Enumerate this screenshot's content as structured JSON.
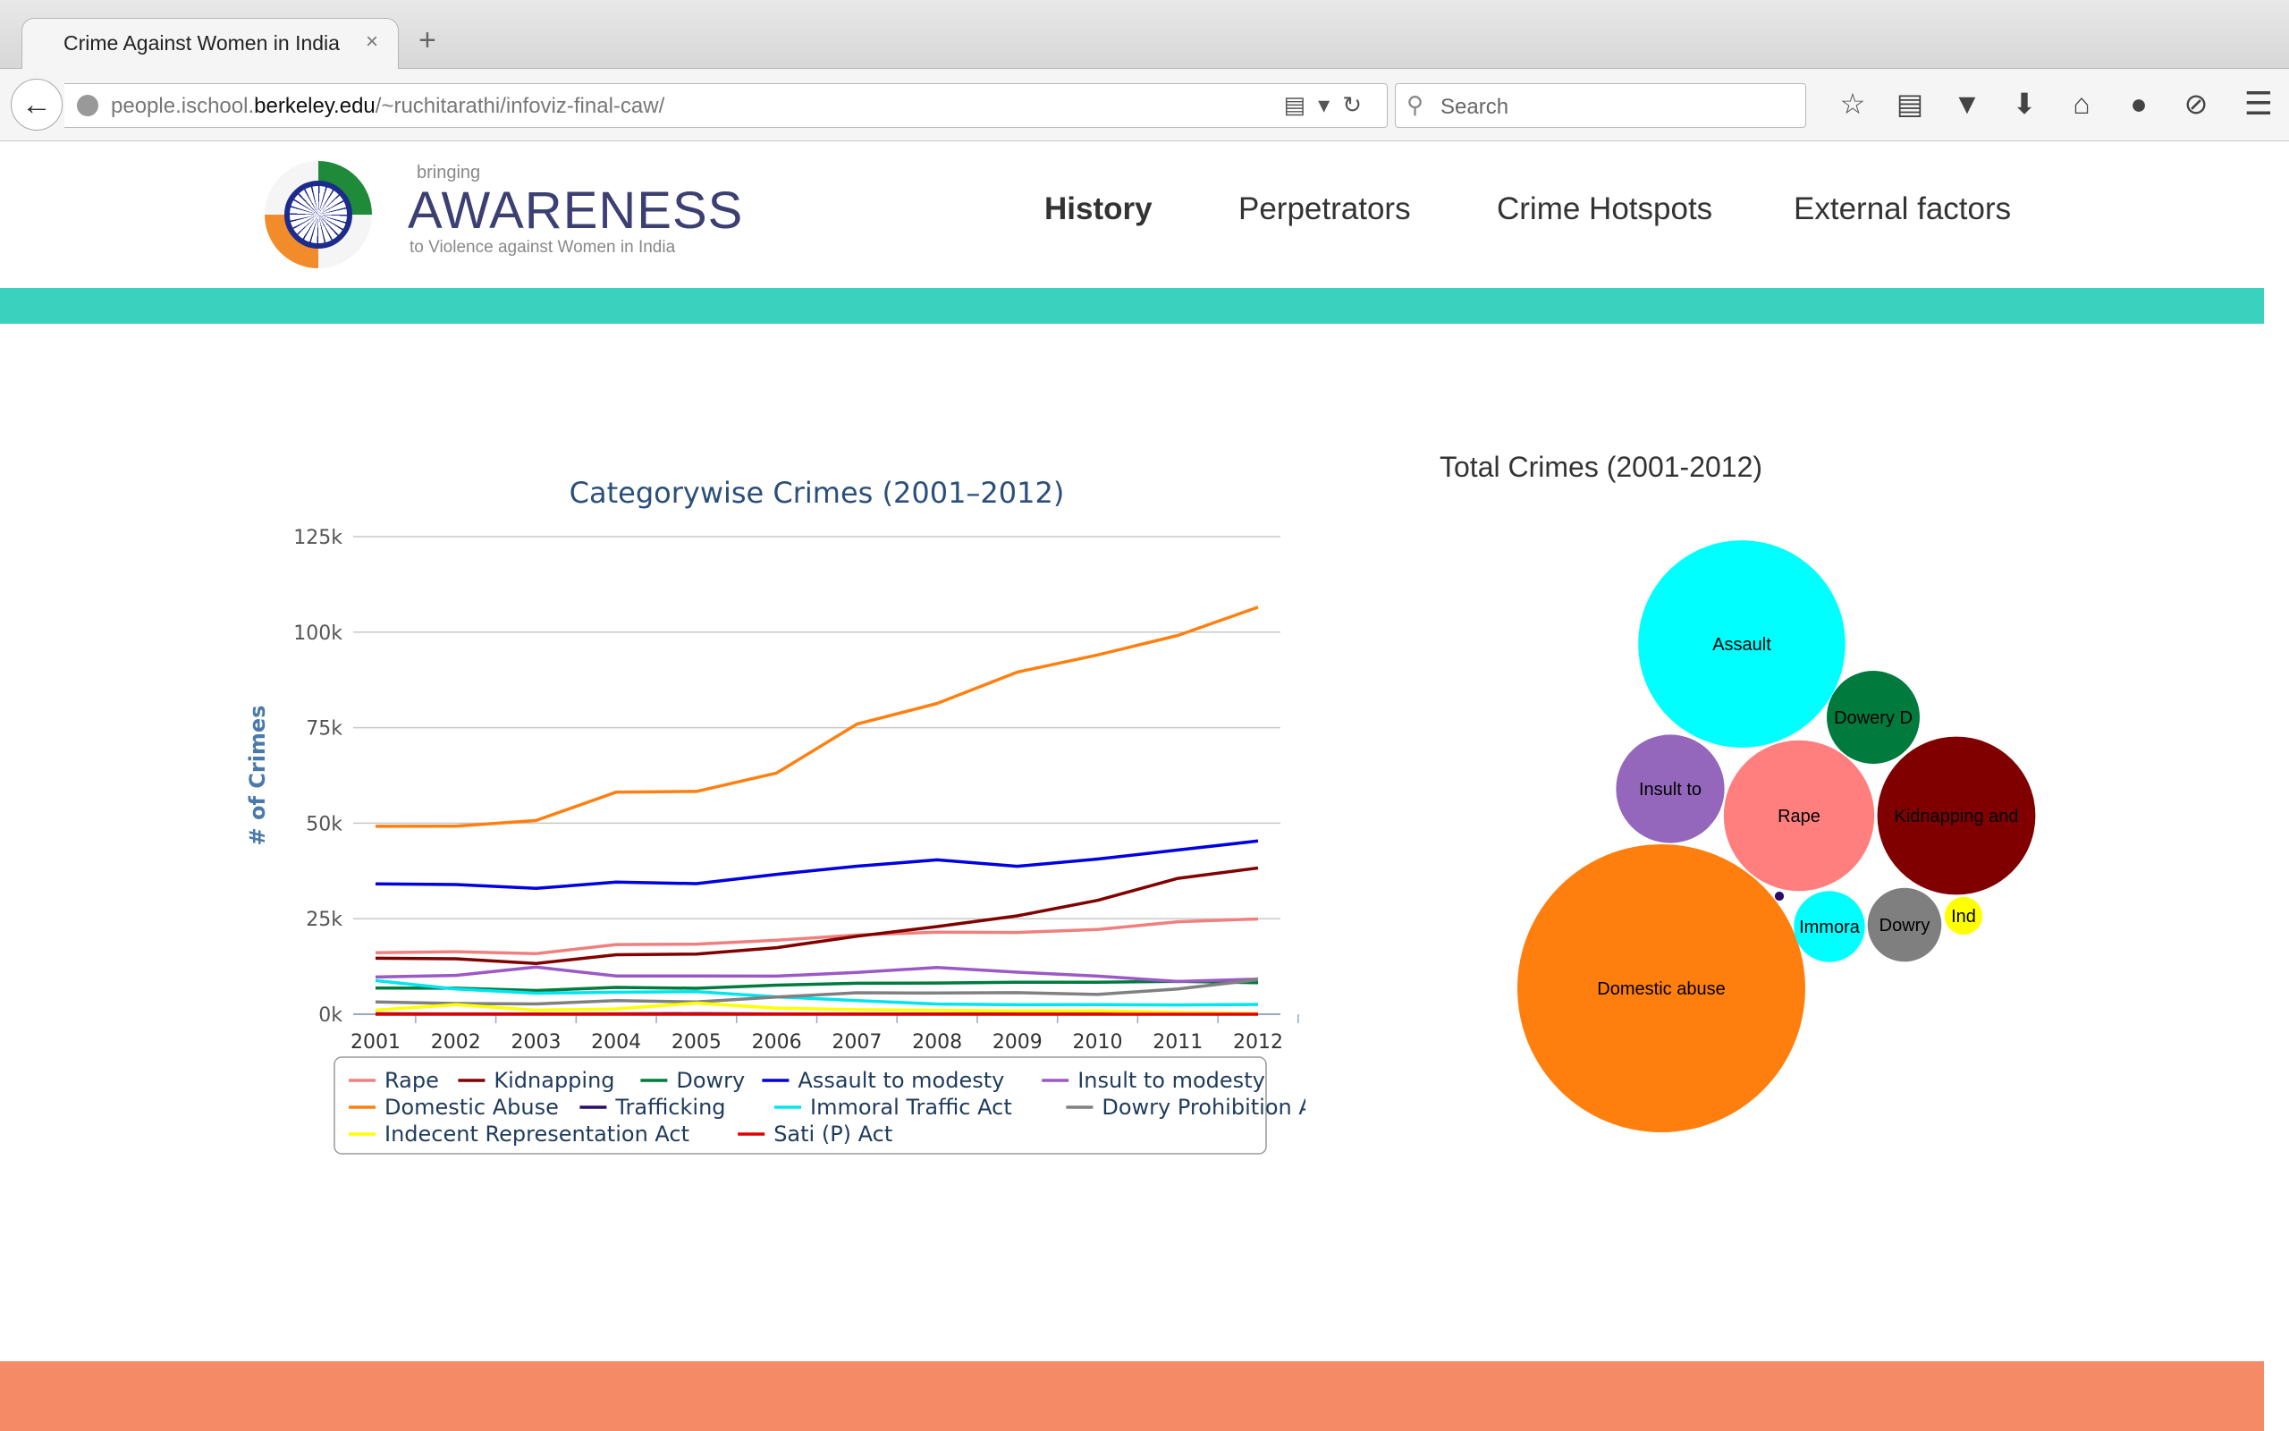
{
  "browser": {
    "tab_title": "Crime Against Women in India",
    "tab_close": "×",
    "new_tab": "+",
    "url_prefix": "people.ischool.",
    "url_domain": "berkeley.edu",
    "url_path": "/~ruchitarathi/infoviz-final-caw/",
    "search_placeholder": "Search"
  },
  "site": {
    "logo_small": "bringing",
    "logo_big": "AWARENESS",
    "logo_sub": "to Violence against Women in India",
    "nav": [
      "History",
      "Perpetrators",
      "Crime Hotspots",
      "External factors"
    ]
  },
  "chart_data": [
    {
      "type": "line",
      "title": "Categorywise Crimes (2001–2012)",
      "ylabel": "# of Crimes",
      "xlabel": "",
      "x": [
        2001,
        2002,
        2003,
        2004,
        2005,
        2006,
        2007,
        2008,
        2009,
        2010,
        2011,
        2012
      ],
      "ylim": [
        0,
        125000
      ],
      "yticks": [
        "0k",
        "25k",
        "50k",
        "75k",
        "100k",
        "125k"
      ],
      "grid": true,
      "legend": "bottom",
      "series": [
        {
          "name": "Rape",
          "color": "#f08080",
          "values": [
            16075,
            16373,
            15847,
            18233,
            18359,
            19348,
            20737,
            21467,
            21397,
            22172,
            24206,
            24923
          ]
        },
        {
          "name": "Kidnapping",
          "color": "#800000",
          "values": [
            14645,
            14506,
            13296,
            15578,
            15750,
            17414,
            20416,
            22939,
            25741,
            29795,
            35565,
            38262
          ]
        },
        {
          "name": "Dowry",
          "color": "#007a3d",
          "values": [
            6851,
            6822,
            6208,
            7026,
            6787,
            7618,
            8093,
            8172,
            8383,
            8391,
            8618,
            8233
          ]
        },
        {
          "name": "Assault to modesty",
          "color": "#0000e0",
          "values": [
            34124,
            33943,
            32939,
            34567,
            34175,
            36617,
            38734,
            40413,
            38711,
            40613,
            42968,
            45351
          ]
        },
        {
          "name": "Insult to modesty",
          "color": "#9b59c6",
          "values": [
            9746,
            10155,
            12325,
            10001,
            9984,
            9966,
            10950,
            12214,
            11009,
            9961,
            8570,
            9173
          ]
        },
        {
          "name": "Domestic Abuse",
          "color": "#ff8010",
          "values": [
            49170,
            49237,
            50703,
            58121,
            58319,
            63128,
            75930,
            81344,
            89546,
            94041,
            99135,
            106527
          ]
        },
        {
          "name": "Trafficking",
          "color": "#2b0a6b",
          "values": [
            114,
            76,
            46,
            89,
            149,
            67,
            61,
            67,
            48,
            36,
            80,
            59
          ]
        },
        {
          "name": "Immoral Traffic Act",
          "color": "#00e5ee",
          "values": [
            8796,
            6598,
            5510,
            5748,
            5908,
            4541,
            3568,
            2659,
            2474,
            2499,
            2435,
            2563
          ]
        },
        {
          "name": "Dowry Prohibition Act",
          "color": "#808080",
          "values": [
            3222,
            2816,
            2684,
            3592,
            3204,
            4504,
            5623,
            5555,
            5650,
            5182,
            6619,
            9038
          ]
        },
        {
          "name": "Indecent Representation Act",
          "color": "#ffff00",
          "values": [
            1052,
            2508,
            1043,
            1378,
            2917,
            1562,
            1200,
            1025,
            845,
            895,
            453,
            141
          ]
        },
        {
          "name": "Sati (P) Act",
          "color": "#e00000",
          "values": [
            0,
            0,
            0,
            0,
            1,
            0,
            0,
            1,
            0,
            0,
            1,
            0
          ]
        }
      ]
    },
    {
      "type": "bubble",
      "title": "Total Crimes (2001-2012)",
      "series": [
        {
          "name": "Domestic abuse",
          "label": "Domestic abuse",
          "color": "#ff7f0e",
          "value": 875201
        },
        {
          "name": "Assault",
          "label": "Assault",
          "color": "#00ffff",
          "value": 453155
        },
        {
          "name": "Kidnapping",
          "label": "Kidnapping and",
          "color": "#800000",
          "value": 263907
        },
        {
          "name": "Rape",
          "label": "Rape",
          "color": "#ff7f7f",
          "value": 239137
        },
        {
          "name": "Insult to modesty",
          "label": "Insult to",
          "color": "#9467bd",
          "value": 124054
        },
        {
          "name": "Dowry deaths",
          "label": "Dowery D",
          "color": "#007a3d",
          "value": 91202
        },
        {
          "name": "Immoral Traffic Act",
          "label": "Immora",
          "color": "#00ffff",
          "value": 53299
        },
        {
          "name": "Dowry Prohibition Act",
          "label": "Dowry",
          "color": "#7f7f7f",
          "value": 57689
        },
        {
          "name": "Indecent Representation Act",
          "label": "Ind",
          "color": "#ffff00",
          "value": 15019
        },
        {
          "name": "Trafficking",
          "label": "",
          "color": "#2b0a6b",
          "value": 892
        }
      ]
    }
  ]
}
